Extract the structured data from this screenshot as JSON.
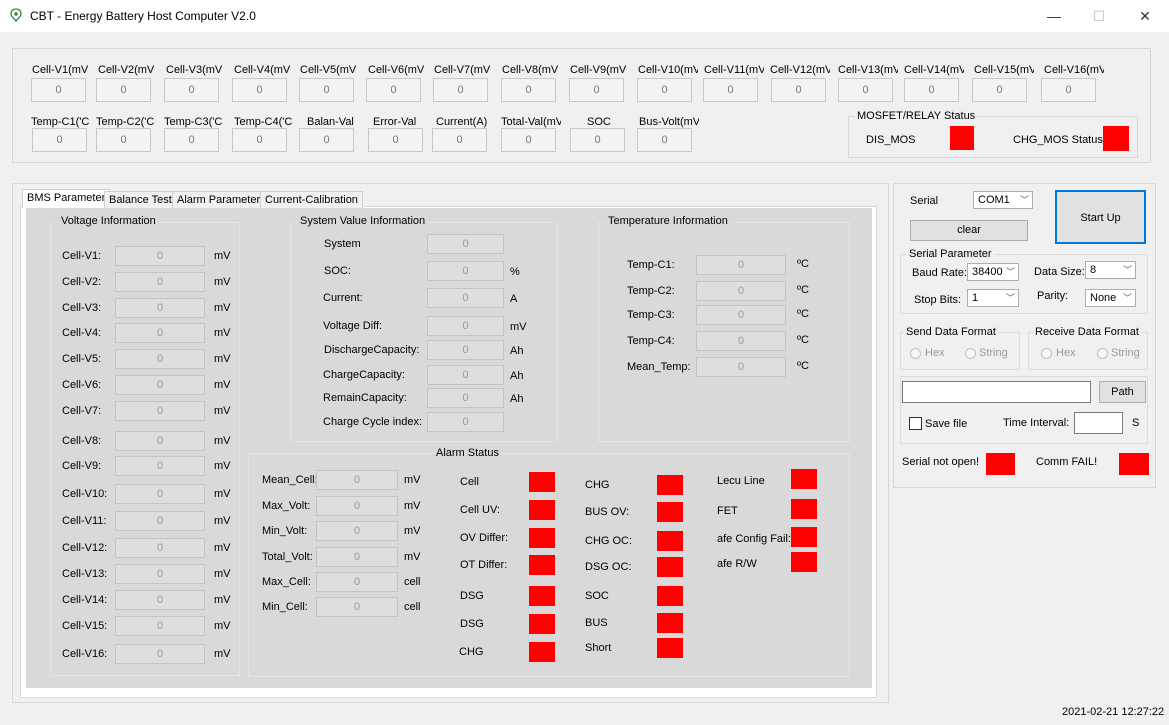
{
  "window": {
    "title": "CBT - Energy Battery Host Computer V2.0",
    "min": "—",
    "max": "☐",
    "close": "✕"
  },
  "top": {
    "cells": [
      {
        "label": "Cell-V1(mV",
        "value": "0"
      },
      {
        "label": "Cell-V2(mV",
        "value": "0"
      },
      {
        "label": "Cell-V3(mV",
        "value": "0"
      },
      {
        "label": "Cell-V4(mV",
        "value": "0"
      },
      {
        "label": "Cell-V5(mV",
        "value": "0"
      },
      {
        "label": "Cell-V6(mV",
        "value": "0"
      },
      {
        "label": "Cell-V7(mV",
        "value": "0"
      },
      {
        "label": "Cell-V8(mV",
        "value": "0"
      },
      {
        "label": "Cell-V9(mV",
        "value": "0"
      },
      {
        "label": "Cell-V10(mV",
        "value": "0"
      },
      {
        "label": "Cell-V11(mV",
        "value": "0"
      },
      {
        "label": "Cell-V12(mV",
        "value": "0"
      },
      {
        "label": "Cell-V13(mV",
        "value": "0"
      },
      {
        "label": "Cell-V14(mV",
        "value": "0"
      },
      {
        "label": "Cell-V15(mV",
        "value": "0"
      },
      {
        "label": "Cell-V16(mV",
        "value": "0"
      }
    ],
    "row2": [
      {
        "label": "Temp-C1('C",
        "value": "0"
      },
      {
        "label": "Temp-C2('C",
        "value": "0"
      },
      {
        "label": "Temp-C3('C",
        "value": "0"
      },
      {
        "label": "Temp-C4('C",
        "value": "0"
      },
      {
        "label": "Balan-Val",
        "value": "0"
      },
      {
        "label": "Error-Val",
        "value": "0"
      },
      {
        "label": "Current(A)",
        "value": "0"
      },
      {
        "label": "Total-Val(mV",
        "value": "0"
      },
      {
        "label": "SOC",
        "value": "0"
      },
      {
        "label": "Bus-Volt(mV",
        "value": "0"
      }
    ],
    "mosfet": {
      "title": "MOSFET/RELAY Status",
      "dis": "DIS_MOS",
      "chg": "CHG_MOS Status:"
    }
  },
  "tabs": [
    "BMS Parameter",
    "Balance Test",
    "Alarm Parameter",
    "Current-Calibration"
  ],
  "voltage": {
    "title": "Voltage Information",
    "rows": [
      {
        "label": "Cell-V1:",
        "value": "0",
        "unit": "mV"
      },
      {
        "label": "Cell-V2:",
        "value": "0",
        "unit": "mV"
      },
      {
        "label": "Cell-V3:",
        "value": "0",
        "unit": "mV"
      },
      {
        "label": "Cell-V4:",
        "value": "0",
        "unit": "mV"
      },
      {
        "label": "Cell-V5:",
        "value": "0",
        "unit": "mV"
      },
      {
        "label": "Cell-V6:",
        "value": "0",
        "unit": "mV"
      },
      {
        "label": "Cell-V7:",
        "value": "0",
        "unit": "mV"
      },
      {
        "label": "Cell-V8:",
        "value": "0",
        "unit": "mV"
      },
      {
        "label": "Cell-V9:",
        "value": "0",
        "unit": "mV"
      },
      {
        "label": "Cell-V10:",
        "value": "0",
        "unit": "mV"
      },
      {
        "label": "Cell-V11:",
        "value": "0",
        "unit": "mV"
      },
      {
        "label": "Cell-V12:",
        "value": "0",
        "unit": "mV"
      },
      {
        "label": "Cell-V13:",
        "value": "0",
        "unit": "mV"
      },
      {
        "label": "Cell-V14:",
        "value": "0",
        "unit": "mV"
      },
      {
        "label": "Cell-V15:",
        "value": "0",
        "unit": "mV"
      },
      {
        "label": "Cell-V16:",
        "value": "0",
        "unit": "mV"
      }
    ]
  },
  "system": {
    "title": "System Value Information",
    "rows": [
      {
        "label": "System",
        "value": "0",
        "unit": ""
      },
      {
        "label": "SOC:",
        "value": "0",
        "unit": "%"
      },
      {
        "label": "Current:",
        "value": "0",
        "unit": "A"
      },
      {
        "label": "Voltage Diff:",
        "value": "0",
        "unit": "mV"
      },
      {
        "label": "DischargeCapacity:",
        "value": "0",
        "unit": "Ah"
      },
      {
        "label": "ChargeCapacity:",
        "value": "0",
        "unit": "Ah"
      },
      {
        "label": "RemainCapacity:",
        "value": "0",
        "unit": "Ah"
      },
      {
        "label": "Charge Cycle index:",
        "value": "0",
        "unit": ""
      }
    ]
  },
  "temperature": {
    "title": "Temperature Information",
    "rows": [
      {
        "label": "Temp-C1:",
        "value": "0",
        "unit": "ºC"
      },
      {
        "label": "Temp-C2:",
        "value": "0",
        "unit": "ºC"
      },
      {
        "label": "Temp-C3:",
        "value": "0",
        "unit": "ºC"
      },
      {
        "label": "Temp-C4:",
        "value": "0",
        "unit": "ºC"
      },
      {
        "label": "Mean_Temp:",
        "value": "0",
        "unit": "ºC"
      }
    ]
  },
  "alarm": {
    "title": "Alarm Status",
    "left": [
      {
        "label": "Mean_Cell:",
        "value": "0",
        "unit": "mV"
      },
      {
        "label": "Max_Volt:",
        "value": "0",
        "unit": "mV"
      },
      {
        "label": "Min_Volt:",
        "value": "0",
        "unit": "mV"
      },
      {
        "label": "Total_Volt:",
        "value": "0",
        "unit": "mV"
      },
      {
        "label": "Max_Cell:",
        "value": "0",
        "unit": "cell"
      },
      {
        "label": "Min_Cell:",
        "value": "0",
        "unit": "cell"
      }
    ],
    "col1": [
      "Cell",
      "Cell UV:",
      "OV Differ:",
      "OT Differ:",
      "DSG",
      "DSG",
      "CHG"
    ],
    "col2": [
      "CHG",
      "BUS OV:",
      "CHG OC:",
      "DSG OC:",
      "SOC",
      "BUS",
      "Short"
    ],
    "col3": [
      "Lecu Line",
      "FET",
      "afe Config Fail:",
      "afe R/W"
    ],
    "indicator_color": "#ff0000"
  },
  "serial": {
    "serial_label": "Serial",
    "port": "COM1",
    "start": "Start Up",
    "clear": "clear",
    "param_title": "Serial Parameter",
    "baud_label": "Baud Rate:",
    "baud": "38400",
    "data_label": "Data Size:",
    "data": "8",
    "stop_label": "Stop Bits:",
    "stop": "1",
    "parity_label": "Parity:",
    "parity": "None",
    "send_title": "Send Data Format",
    "recv_title": "Receive Data Format",
    "hex": "Hex",
    "string": "String",
    "path": "Path",
    "save": "Save  file",
    "interval_label": "Time Interval:",
    "interval_unit": "S",
    "not_open": "Serial not open!",
    "comm_fail": "Comm FAIL!"
  },
  "status": {
    "datetime": "2021-02-21   12:27:22"
  }
}
